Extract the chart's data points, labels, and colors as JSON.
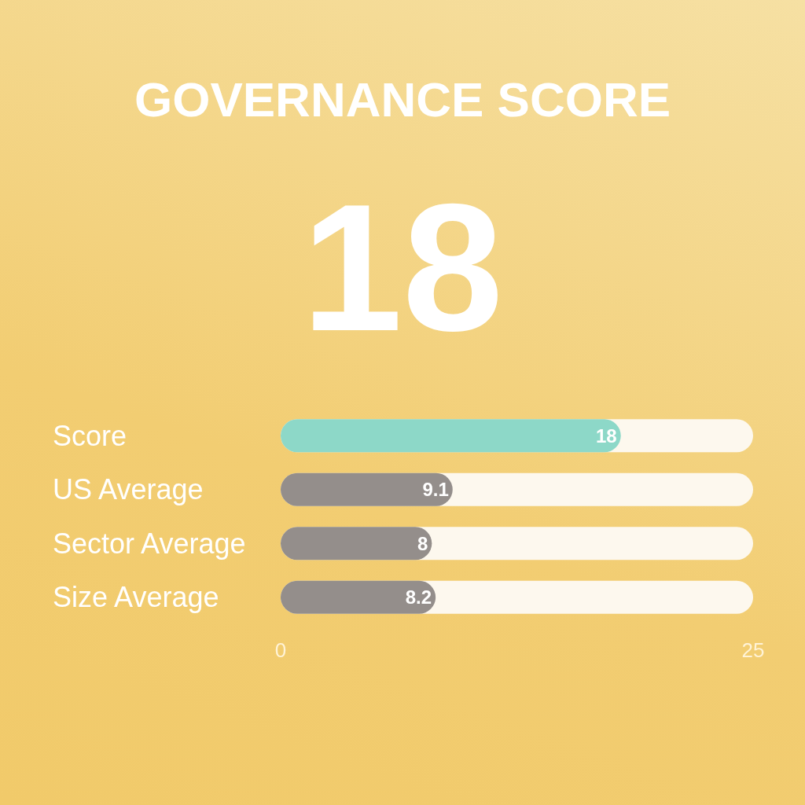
{
  "chart_data": {
    "type": "bar",
    "orientation": "horizontal",
    "title": "GOVERNANCE SCORE",
    "annotations": [
      "18"
    ],
    "categories": [
      "Score",
      "US Average",
      "Sector Average",
      "Size Average"
    ],
    "values": [
      18,
      9.1,
      8,
      8.2
    ],
    "colors": [
      "#8dd8c8",
      "#948e8b",
      "#948e8b",
      "#948e8b"
    ],
    "xlim": [
      0,
      25
    ],
    "xticks": [
      0,
      25
    ],
    "data_labels": true
  }
}
